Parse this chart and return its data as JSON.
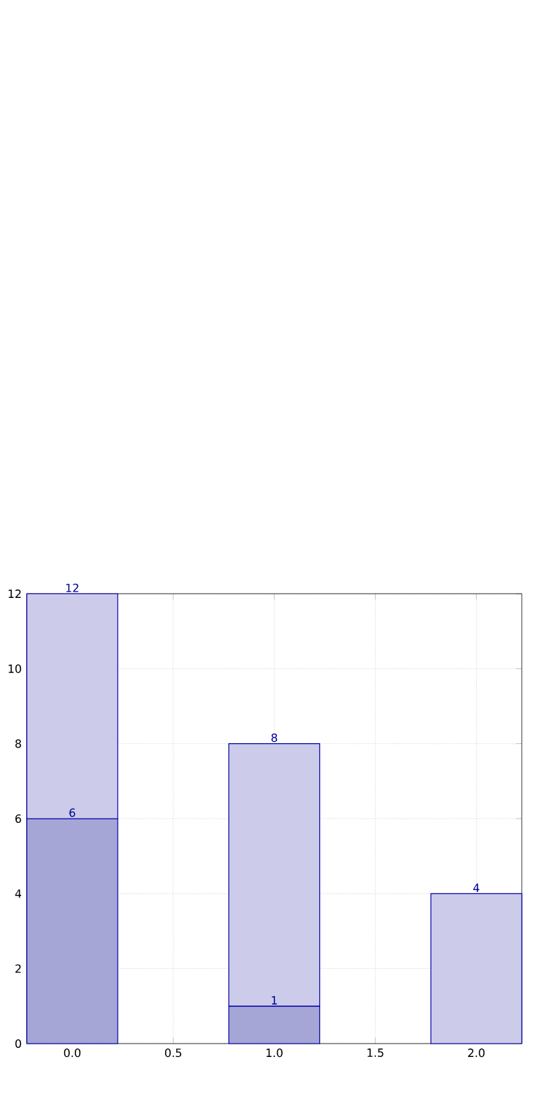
{
  "chart_data": {
    "type": "bar",
    "x": [
      0,
      1,
      2
    ],
    "stacked": true,
    "series": [
      {
        "color": "#a6a6d6",
        "values": [
          6,
          1,
          null
        ],
        "value_labels": [
          "6",
          "1",
          null
        ]
      },
      {
        "color": "#ccccea",
        "values": [
          6,
          7,
          4
        ]
      }
    ],
    "totals": [
      "12",
      "8",
      "4"
    ],
    "xlim": [
      -0.225,
      2.225
    ],
    "ylim": [
      0,
      12
    ],
    "xticks": [
      {
        "value": 0,
        "label": "0.0"
      },
      {
        "value": 0.5,
        "label": "0.5"
      },
      {
        "value": 1,
        "label": "1.0"
      },
      {
        "value": 1.5,
        "label": "1.5"
      },
      {
        "value": 2,
        "label": "2.0"
      }
    ],
    "yticks": [
      0,
      2,
      4,
      6,
      8,
      10,
      12
    ],
    "grid": true
  }
}
